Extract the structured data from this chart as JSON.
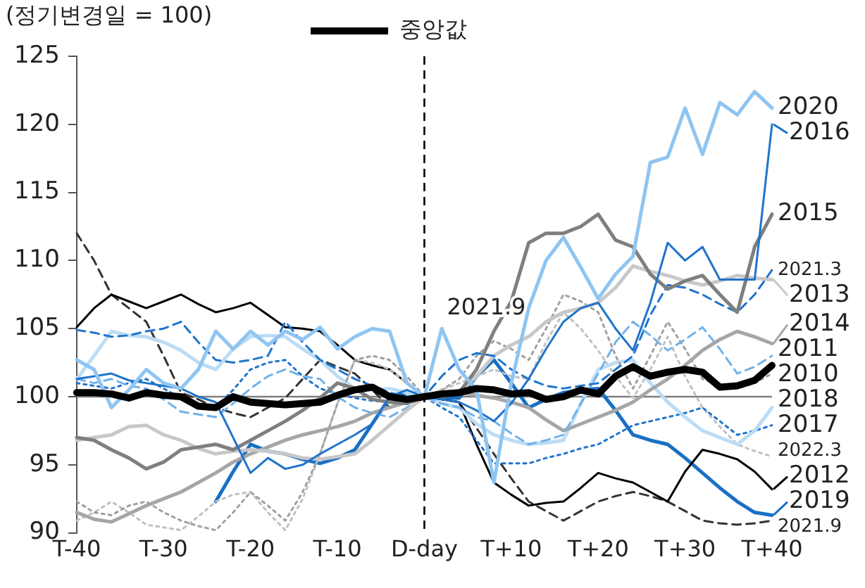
{
  "chart_data": {
    "type": "line",
    "ylabel": "(정기변경일 = 100)",
    "legend": "top",
    "grid": false,
    "marker": "none",
    "categories": [
      "T-40",
      null,
      null,
      null,
      null,
      "T-30",
      null,
      null,
      null,
      null,
      "T-20",
      null,
      null,
      null,
      null,
      "T-10",
      null,
      null,
      null,
      null,
      "D-day",
      null,
      null,
      null,
      null,
      "T+10",
      null,
      null,
      null,
      null,
      "T+20",
      null,
      null,
      null,
      null,
      "T+30",
      null,
      null,
      null,
      null,
      "T+40"
    ],
    "ylim": [
      90,
      125
    ],
    "yticks": [
      90,
      95,
      100,
      105,
      110,
      115,
      120,
      125
    ],
    "ref_lines": [
      {
        "axis": "y",
        "value": 100,
        "color": "#7f7f7f",
        "line_style": "solid"
      },
      {
        "axis": "x",
        "value": "D-day",
        "color": "#000000",
        "line_style": "dashed"
      }
    ],
    "annotations": [
      "2021.9"
    ],
    "series": [
      {
        "name": "중앙값",
        "color": "#000000",
        "line_style": "solid",
        "values": [
          100.3,
          100.3,
          100.2,
          99.9,
          100.3,
          100.1,
          100,
          99.3,
          99.2,
          100,
          99.6,
          99.5,
          99.4,
          99.5,
          99.6,
          100.1,
          100.5,
          100.7,
          100,
          99.8,
          100,
          100.2,
          100.3,
          100.6,
          100.5,
          100.2,
          100.3,
          99.8,
          100,
          100.5,
          100.2,
          101.5,
          102.2,
          101.5,
          101.8,
          102,
          101.8,
          100.7,
          100.8,
          101.2,
          102.3
        ]
      },
      {
        "name": "2020",
        "color": "#8ec5f2",
        "line_style": "solid",
        "values": [
          102.7,
          102,
          99.2,
          100.5,
          102,
          101,
          100.6,
          102,
          104.8,
          103.5,
          104.8,
          103.8,
          104.8,
          104.2,
          105.1,
          103.5,
          104.4,
          105,
          104.8,
          101,
          100,
          105,
          102,
          100.5,
          93.7,
          101,
          106.5,
          110,
          111.7,
          109.5,
          107.2,
          109,
          110.3,
          117.2,
          117.6,
          121.2,
          117.8,
          121.6,
          120.7,
          122.4,
          121.2
        ]
      },
      {
        "name": "2016",
        "color": "#1f74cc",
        "line_style": "solid",
        "values": [
          101.3,
          101.5,
          101.7,
          101.2,
          101,
          100.8,
          100.6,
          100,
          99.6,
          97,
          94.4,
          95.5,
          94.7,
          95,
          95.8,
          96.5,
          97.2,
          98,
          100,
          100.5,
          100,
          99.8,
          99.6,
          99,
          98.2,
          99.5,
          101.3,
          103.5,
          105.5,
          106.5,
          106.9,
          105,
          103.4,
          106.9,
          111.3,
          110,
          111,
          108.6,
          108.6,
          108.6,
          120
        ]
      },
      {
        "name": "2015",
        "color": "#7f7f7f",
        "line_style": "solid",
        "values": [
          97,
          96.8,
          96.1,
          95.5,
          94.7,
          95.2,
          96.1,
          96.3,
          96.5,
          96.1,
          96.8,
          97.5,
          98.2,
          99,
          99.9,
          101,
          100.6,
          99.8,
          99.6,
          99.5,
          100,
          100,
          100.3,
          102,
          104.8,
          107,
          111.3,
          112,
          112,
          112.5,
          113.4,
          111.5,
          111,
          109,
          107.9,
          108.5,
          108.9,
          107.5,
          106.2,
          111,
          113.4
        ]
      },
      {
        "name": "2021.3",
        "color": "#1f74cc",
        "line_style": "dashed",
        "values": [
          104.9,
          104.7,
          104.4,
          104.5,
          104.8,
          105,
          105.5,
          104,
          102.7,
          102.5,
          102.7,
          103,
          105.5,
          104,
          102.7,
          102,
          101.3,
          100.8,
          100.3,
          100,
          100,
          101.5,
          102.7,
          103.2,
          103,
          102,
          101.3,
          100.8,
          100.6,
          100.8,
          101,
          102,
          103,
          106,
          108.2,
          108,
          107.5,
          106.8,
          106.2,
          107.5,
          109.3
        ]
      },
      {
        "name": "2013",
        "color": "#c8c8c8",
        "line_style": "solid",
        "values": [
          96.8,
          97,
          97.2,
          97.8,
          97.9,
          97.2,
          96.8,
          96.2,
          95.8,
          96,
          96.1,
          96,
          95.8,
          95.5,
          95.4,
          95.6,
          95.8,
          96.8,
          97.9,
          99,
          100,
          100.2,
          100.3,
          101.5,
          103,
          103.8,
          104.4,
          105.5,
          106.2,
          106.5,
          106.9,
          108,
          109.6,
          109.2,
          108.9,
          108.5,
          108.2,
          108.5,
          108.9,
          108.7,
          108.6
        ]
      },
      {
        "name": "2011",
        "color": "#6fb2ea",
        "line_style": "dashed",
        "values": [
          101.3,
          101,
          101.3,
          100.8,
          100.6,
          99.8,
          98.9,
          98.7,
          98.5,
          99.5,
          100.6,
          101.5,
          102,
          101.5,
          101.3,
          100,
          99.2,
          98.8,
          98.5,
          99.2,
          100,
          99.5,
          99.2,
          98.5,
          98.2,
          97.3,
          96.5,
          96.8,
          97.2,
          99.5,
          101.7,
          104,
          105.5,
          104.5,
          103.4,
          104.2,
          105.1,
          103.5,
          101.7,
          102.2,
          103
        ]
      },
      {
        "name": "2014",
        "color": "#a6a6a6",
        "line_style": "solid",
        "values": [
          91.5,
          91,
          90.8,
          91.4,
          92,
          92.5,
          93,
          93.7,
          94.4,
          95.2,
          95.8,
          96.3,
          96.8,
          97.2,
          97.5,
          97.8,
          98.2,
          98.8,
          99.2,
          99.6,
          100,
          100.2,
          100.3,
          100.1,
          99.9,
          99.6,
          99.2,
          98.3,
          97.5,
          98,
          98.5,
          99,
          99.6,
          100.5,
          101.3,
          102.3,
          103.4,
          104.2,
          104.8,
          104.4,
          103.9
        ]
      },
      {
        "name": "2010",
        "color": "#a0a0a0",
        "line_style": "dotted",
        "values": [
          92.3,
          91.5,
          91.3,
          92,
          92.3,
          91.5,
          90.9,
          90.5,
          90.2,
          91.5,
          93,
          92,
          90.9,
          93,
          95.8,
          99.5,
          102.7,
          103,
          102.7,
          101.5,
          100,
          100.5,
          101.3,
          103,
          104.1,
          103.5,
          102.7,
          105,
          107.5,
          107,
          106.2,
          103,
          100.6,
          103,
          105.5,
          103.5,
          101.3,
          100.8,
          100.6,
          101,
          101.7
        ]
      },
      {
        "name": "2018",
        "color": "#bddcf5",
        "line_style": "solid",
        "values": [
          101.3,
          103,
          104.8,
          104.5,
          104.4,
          104,
          103.4,
          102.5,
          102,
          103.5,
          104.4,
          104.5,
          104.4,
          103.5,
          102.7,
          101.5,
          100.6,
          100.5,
          100.6,
          100.3,
          100,
          99.5,
          99.2,
          98,
          97.2,
          96.8,
          96.5,
          96.6,
          96.8,
          99.5,
          102,
          102.5,
          102.7,
          101,
          99.6,
          98.5,
          97.5,
          97,
          96.5,
          97.5,
          99.2
        ]
      },
      {
        "name": "2017",
        "color": "#1f74cc",
        "line_style": "dotted",
        "values": [
          101,
          100.8,
          100.6,
          101,
          101.3,
          100.6,
          99.9,
          99.5,
          99.2,
          100.5,
          102,
          102.5,
          102.7,
          101.5,
          100.6,
          100.2,
          99.9,
          99.7,
          99.6,
          99.8,
          100,
          99.2,
          98.5,
          96.8,
          95.1,
          95.1,
          95.1,
          95.5,
          95.8,
          96.2,
          96.5,
          97.2,
          97.9,
          98.2,
          98.5,
          98.8,
          99.2,
          98.2,
          97.2,
          97.5,
          97.9
        ]
      },
      {
        "name": "2022.3",
        "color": "#c0c0c0",
        "line_style": "dotted",
        "values": [
          90.9,
          91.5,
          92.3,
          91.5,
          90.6,
          90.4,
          90.2,
          91.2,
          92.3,
          92.8,
          93,
          91.5,
          90.2,
          92.5,
          95.8,
          99.5,
          102.7,
          102.5,
          102,
          101,
          100,
          100.5,
          101,
          101.5,
          102,
          101.5,
          101.3,
          104,
          106.2,
          105,
          103.4,
          101.5,
          99.9,
          102,
          104.4,
          101.5,
          99.2,
          97.8,
          96.5,
          96,
          95.6
        ]
      },
      {
        "name": "2012",
        "color": "#000000",
        "line_style": "solid",
        "values": [
          105.1,
          106.5,
          107.5,
          107,
          106.5,
          107,
          107.5,
          106.8,
          106.2,
          106.5,
          106.9,
          106,
          105.1,
          105,
          104.8,
          103.8,
          102.7,
          102.3,
          102,
          101,
          100,
          99.8,
          99.6,
          96.5,
          93.7,
          92.8,
          92,
          92.2,
          92.3,
          93.3,
          94.4,
          94,
          93.7,
          93,
          92.3,
          94.5,
          96.1,
          95.8,
          95.4,
          94.5,
          93.2
        ]
      },
      {
        "name": "2019",
        "color": "#1a6fc4",
        "line_style": "solid",
        "values": [
          null,
          null,
          null,
          null,
          null,
          null,
          null,
          null,
          92.3,
          94.5,
          96.5,
          96,
          95.8,
          95.4,
          95.1,
          95.5,
          96.1,
          98,
          99.9,
          100.3,
          100,
          99.9,
          99.9,
          101.5,
          102.7,
          101,
          99.2,
          99.8,
          100.3,
          100.5,
          100.6,
          99,
          97.2,
          96.8,
          96.5,
          95.5,
          94.4,
          93.3,
          92.3,
          91.5,
          91.3
        ]
      },
      {
        "name": "2021.9",
        "color": "#333333",
        "line_style": "dashed",
        "values": [
          112,
          110,
          107.5,
          106.5,
          105.5,
          103,
          100.3,
          99.8,
          99.2,
          98.8,
          98.5,
          99.2,
          99.9,
          101.3,
          102.7,
          102.2,
          101.7,
          100.5,
          99.2,
          99.6,
          100,
          99.8,
          99.6,
          97.7,
          95.8,
          94,
          92.3,
          91.6,
          90.9,
          91.6,
          92.3,
          92.7,
          93,
          92.7,
          92.3,
          91.6,
          90.9,
          90.7,
          90.6,
          90.7,
          90.9
        ]
      }
    ]
  }
}
